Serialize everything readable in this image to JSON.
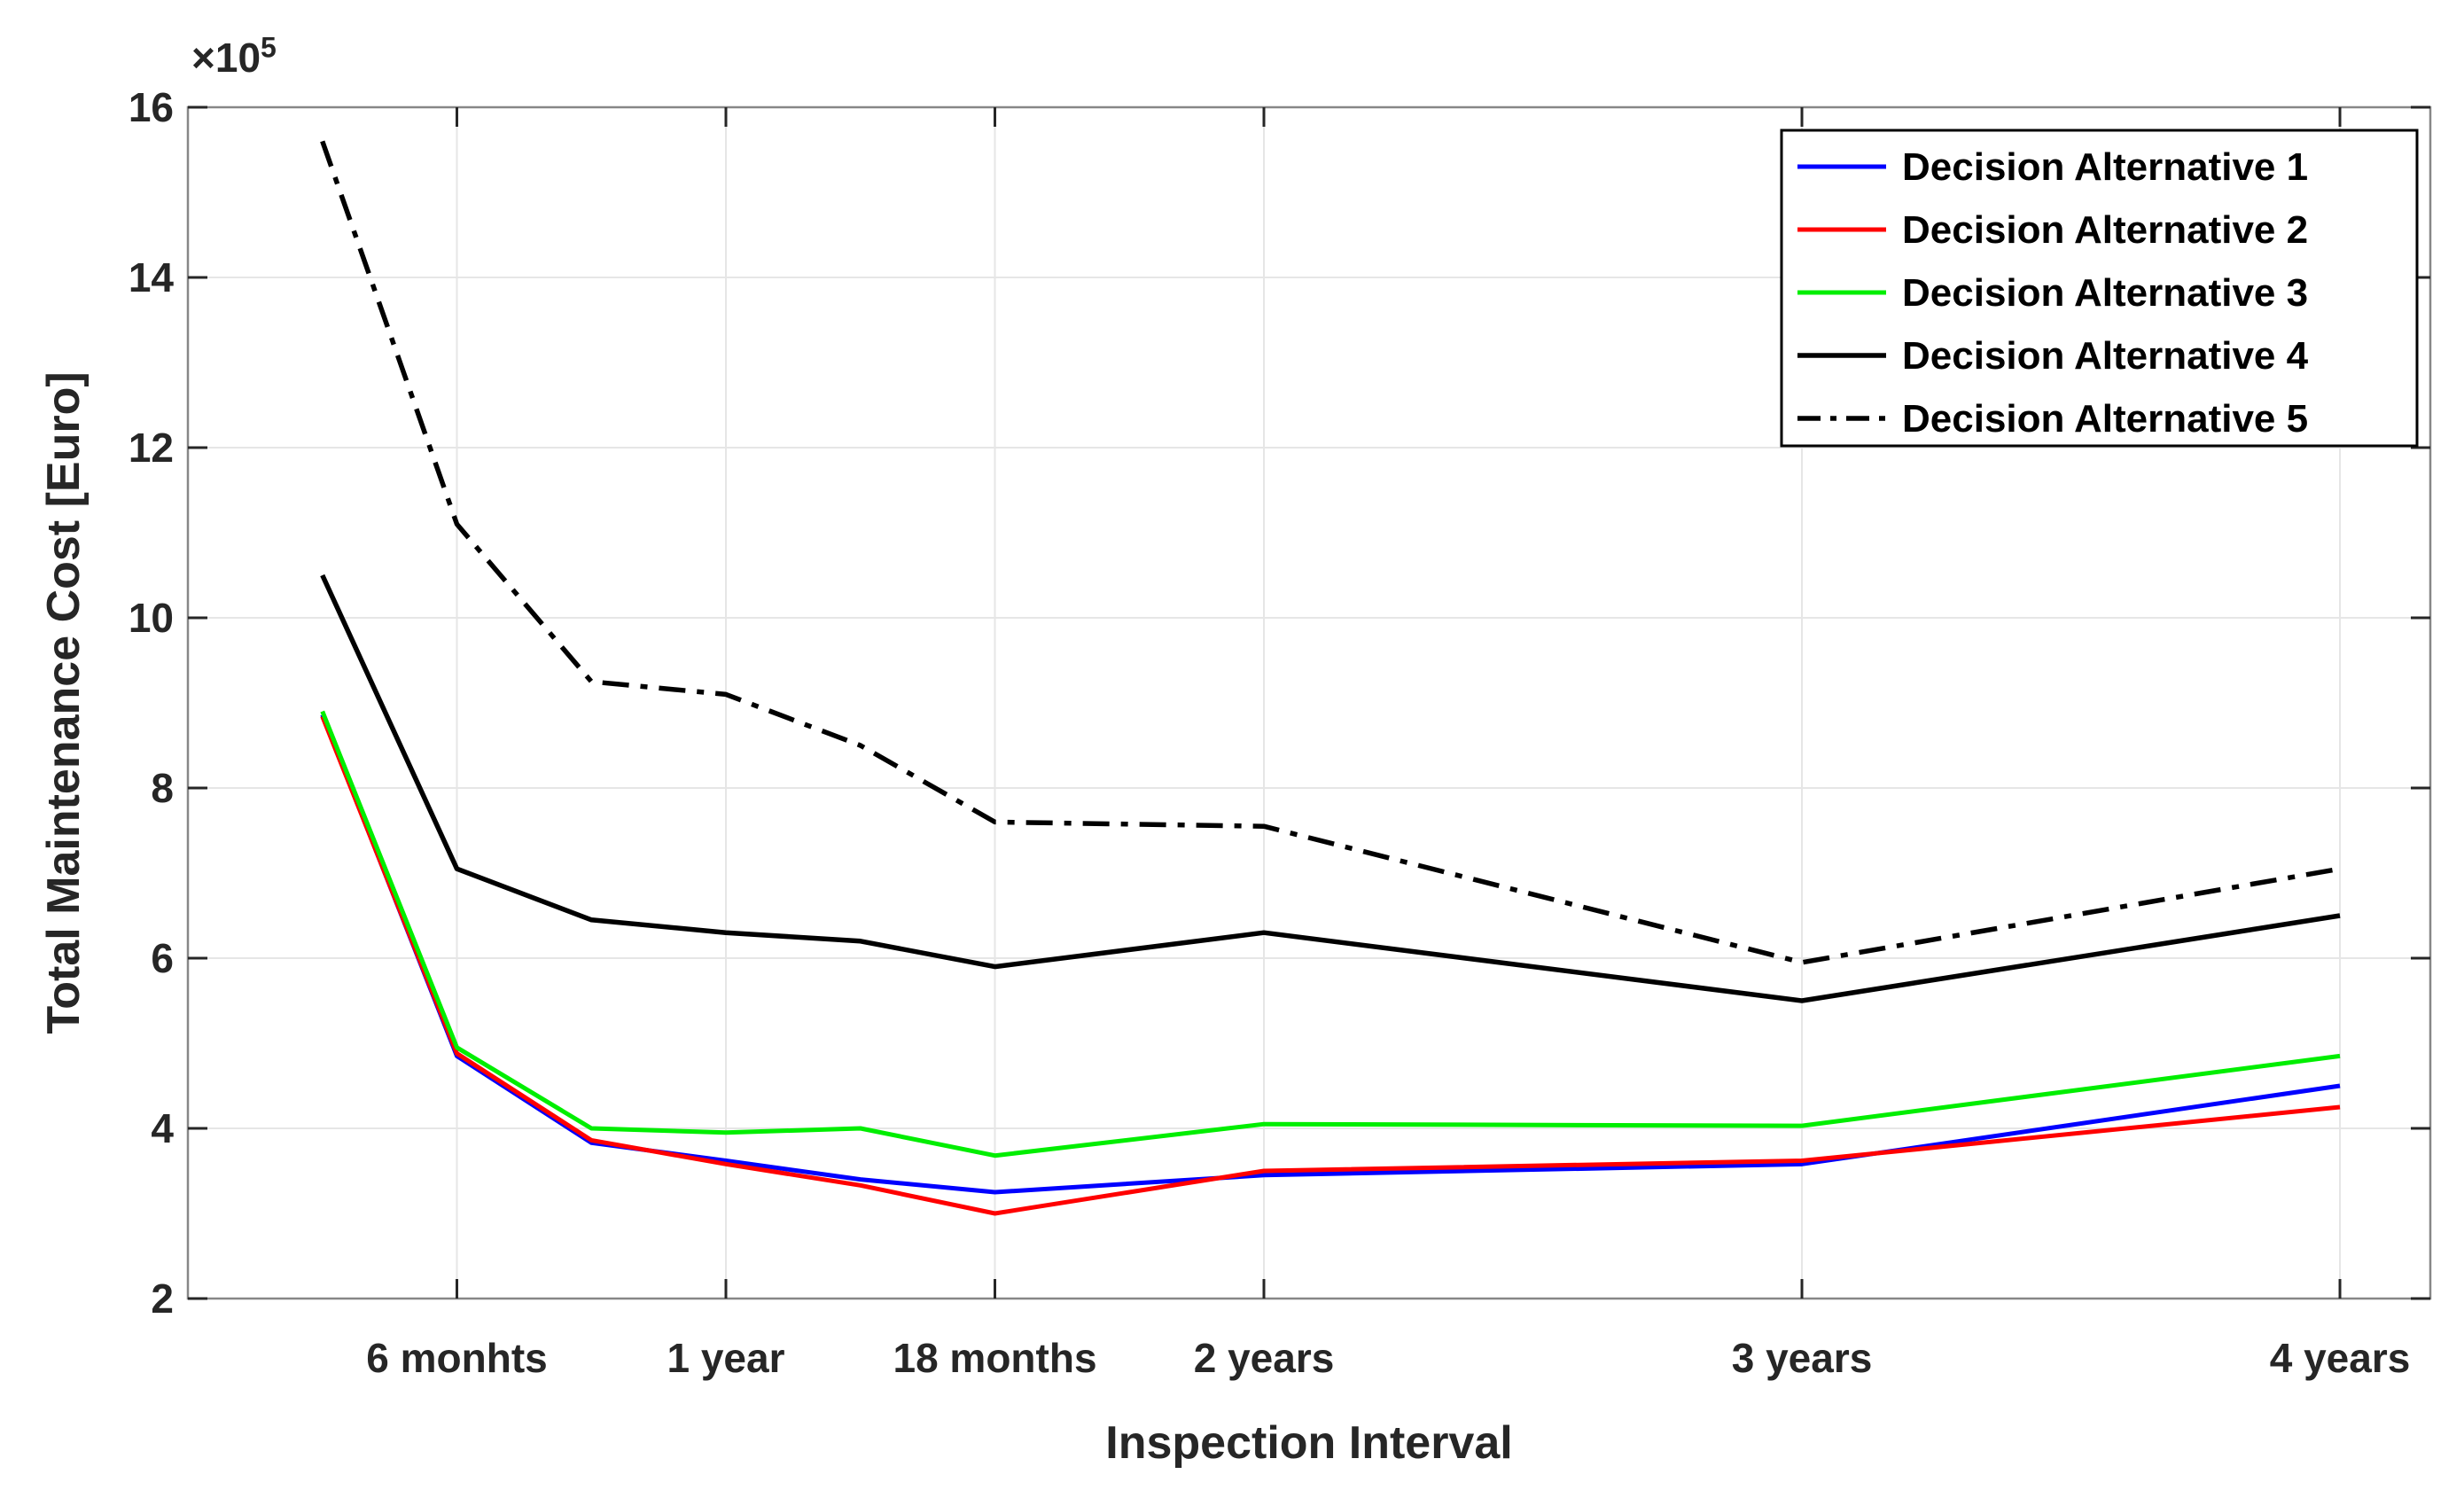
{
  "chart_data": {
    "type": "line",
    "title": "",
    "xlabel": "Inspection Interval",
    "ylabel": "Total Maintenance Cost [Euro]",
    "y_offset": {
      "base": "×10",
      "exponent": "5"
    },
    "value_unit": "x10^5 Euro",
    "xlim": [
      0,
      4.168
    ],
    "ylim": [
      2,
      16
    ],
    "grid": true,
    "yticks": [
      2,
      4,
      6,
      8,
      10,
      12,
      14,
      16
    ],
    "xticks": [
      {
        "value": 0.5,
        "label": "6 monhts"
      },
      {
        "value": 1.0,
        "label": "1 year"
      },
      {
        "value": 1.5,
        "label": "18 months"
      },
      {
        "value": 2.0,
        "label": "2 years"
      },
      {
        "value": 3.0,
        "label": "3 years"
      },
      {
        "value": 4.0,
        "label": "4 years"
      }
    ],
    "x_years": [
      0.25,
      0.5,
      0.75,
      1.0,
      1.25,
      1.5,
      2.0,
      3.0,
      4.0
    ],
    "series": [
      {
        "name": "Decision Alternative 1",
        "color": "#0000FF",
        "style": "solid",
        "values": [
          8.86,
          4.85,
          3.83,
          3.62,
          3.4,
          3.25,
          3.45,
          3.58,
          4.5
        ]
      },
      {
        "name": "Decision Alternative 2",
        "color": "#FF0000",
        "style": "solid",
        "values": [
          8.84,
          4.88,
          3.86,
          3.58,
          3.33,
          3.0,
          3.5,
          3.62,
          4.25
        ]
      },
      {
        "name": "Decision Alternative 3",
        "color": "#00EE00",
        "style": "solid",
        "values": [
          8.9,
          4.95,
          4.0,
          3.95,
          4.0,
          3.68,
          4.05,
          4.03,
          4.85
        ]
      },
      {
        "name": "Decision Alternative 4",
        "color": "#000000",
        "style": "solid",
        "values": [
          10.5,
          7.05,
          6.45,
          6.3,
          6.2,
          5.9,
          6.3,
          5.5,
          6.5
        ]
      },
      {
        "name": "Decision Alternative 5",
        "color": "#000000",
        "style": "dashdot",
        "values": [
          15.6,
          11.1,
          9.25,
          9.1,
          8.5,
          7.6,
          7.55,
          5.95,
          7.05
        ]
      }
    ],
    "legend": {
      "position": "northeast",
      "entries": [
        "Decision Alternative 1",
        "Decision Alternative 2",
        "Decision Alternative 3",
        "Decision Alternative 4",
        "Decision Alternative 5"
      ]
    },
    "colors": {
      "text": "#262626",
      "box": "#878787",
      "gridline": "#E6E6E6",
      "tick": "#262626",
      "legend_border": "#000000",
      "background": "#FFFFFF"
    }
  }
}
